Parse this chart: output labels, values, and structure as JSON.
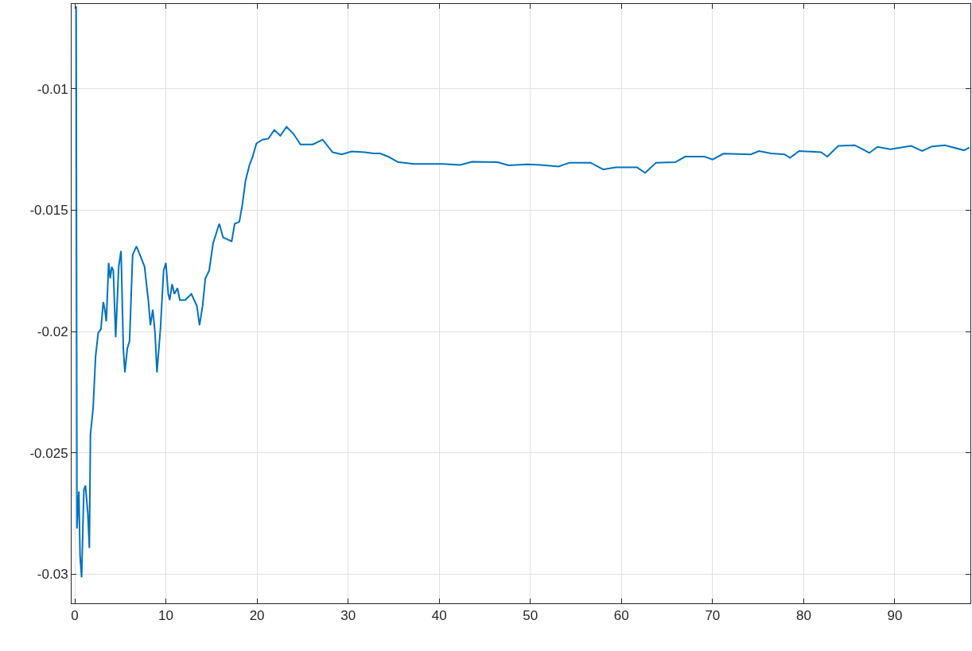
{
  "chart_data": {
    "type": "line",
    "x": [
      0.15,
      0.24,
      0.45,
      0.58,
      0.75,
      1.0,
      1.17,
      1.43,
      1.6,
      1.72,
      2.02,
      2.28,
      2.57,
      2.87,
      3.13,
      3.3,
      3.46,
      3.72,
      3.89,
      4.06,
      4.23,
      4.49,
      4.82,
      5.08,
      5.33,
      5.5,
      5.76,
      6.01,
      6.35,
      6.77,
      7.24,
      7.66,
      8.09,
      8.3,
      8.56,
      8.81,
      9.02,
      9.4,
      9.75,
      10.0,
      10.26,
      10.42,
      10.68,
      10.93,
      11.27,
      11.53,
      12.12,
      12.8,
      13.4,
      13.69,
      14.03,
      14.33,
      14.75,
      15.18,
      15.86,
      16.28,
      17.22,
      17.55,
      18.06,
      18.4,
      18.74,
      19.17,
      19.5,
      19.93,
      20.6,
      21.25,
      21.9,
      22.56,
      23.24,
      24.0,
      24.77,
      26.13,
      27.2,
      28.3,
      29.3,
      30.4,
      31.8,
      32.8,
      33.5,
      34.4,
      35.5,
      37.2,
      40.4,
      42.3,
      43.6,
      46.4,
      47.6,
      49.7,
      51.1,
      53.1,
      54.3,
      56.6,
      58.0,
      59.4,
      61.7,
      62.6,
      63.8,
      65.9,
      67.0,
      69.1,
      70.0,
      71.2,
      74.2,
      75.1,
      76.4,
      77.9,
      78.5,
      79.5,
      81.9,
      82.6,
      83.8,
      85.6,
      86.5,
      87.2,
      88.1,
      89.5,
      91.8,
      93.0,
      94.1,
      95.5,
      97.6,
      98.2
    ],
    "series": [
      {
        "color": "#0072bd",
        "values": [
          -0.0066,
          -0.02812,
          -0.02659,
          -0.02924,
          -0.03013,
          -0.02651,
          -0.02635,
          -0.02747,
          -0.02892,
          -0.02425,
          -0.02312,
          -0.02103,
          -0.02006,
          -0.0199,
          -0.01878,
          -0.0191,
          -0.01958,
          -0.01717,
          -0.01781,
          -0.01733,
          -0.01749,
          -0.02023,
          -0.01733,
          -0.01668,
          -0.02071,
          -0.02168,
          -0.02071,
          -0.02039,
          -0.01684,
          -0.01649,
          -0.01692,
          -0.01733,
          -0.01878,
          -0.01974,
          -0.0191,
          -0.02006,
          -0.02168,
          -0.0199,
          -0.01749,
          -0.01717,
          -0.01845,
          -0.0187,
          -0.01805,
          -0.01845,
          -0.01821,
          -0.0187,
          -0.0187,
          -0.01845,
          -0.01894,
          -0.01974,
          -0.01894,
          -0.01781,
          -0.01749,
          -0.01636,
          -0.01556,
          -0.01612,
          -0.01628,
          -0.01556,
          -0.01548,
          -0.01475,
          -0.01378,
          -0.01314,
          -0.01282,
          -0.01225,
          -0.01209,
          -0.01205,
          -0.01169,
          -0.01193,
          -0.01156,
          -0.01185,
          -0.01229,
          -0.01229,
          -0.01209,
          -0.01261,
          -0.0127,
          -0.01258,
          -0.01261,
          -0.01266,
          -0.01266,
          -0.01279,
          -0.01302,
          -0.01309,
          -0.01309,
          -0.01313,
          -0.013,
          -0.01302,
          -0.01315,
          -0.01311,
          -0.01313,
          -0.0132,
          -0.01304,
          -0.01304,
          -0.01332,
          -0.01323,
          -0.01323,
          -0.01346,
          -0.01304,
          -0.01302,
          -0.01279,
          -0.01279,
          -0.01291,
          -0.01267,
          -0.0127,
          -0.01256,
          -0.01266,
          -0.0127,
          -0.01284,
          -0.01256,
          -0.01261,
          -0.01279,
          -0.01235,
          -0.01232,
          -0.01249,
          -0.01264,
          -0.01239,
          -0.01249,
          -0.01235,
          -0.01256,
          -0.01237,
          -0.01232,
          -0.01253,
          -0.01242
        ]
      }
    ],
    "xlim": [
      -0.35,
      98.3
    ],
    "ylim": [
      -0.0312,
      -0.0065
    ],
    "xticks": [
      0,
      10,
      20,
      30,
      40,
      50,
      60,
      70,
      80,
      90
    ],
    "yticks": [
      -0.03,
      -0.025,
      -0.02,
      -0.015,
      -0.01
    ],
    "grid": true,
    "marker": "none",
    "line_style": "solid",
    "legend": false
  }
}
